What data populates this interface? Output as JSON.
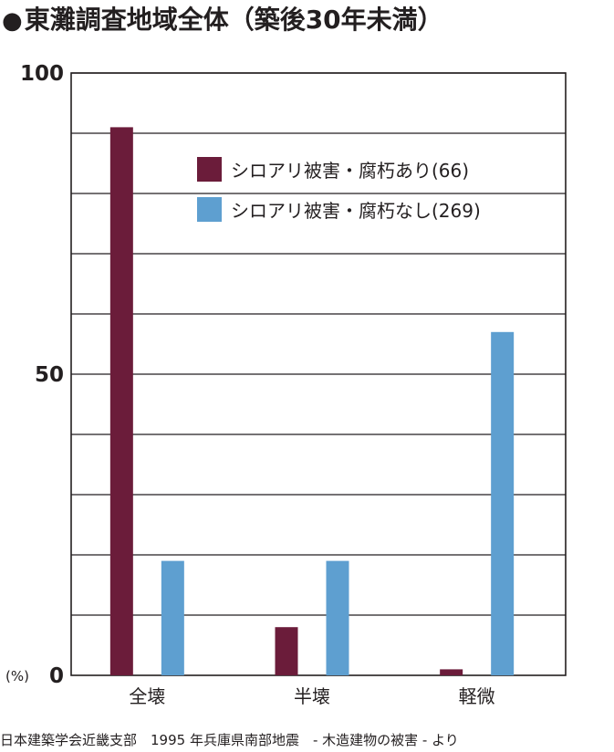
{
  "title": "東灘調査地域全体（築後30年未満）",
  "title_bullet": "●",
  "source": "日本建築学会近畿支部　1995 年兵庫県南部地震　- 木造建物の被害 - より",
  "chart_data": {
    "type": "bar",
    "title": "東灘調査地域全体（築後30年未満）",
    "categories": [
      "全壊",
      "半壊",
      "軽微"
    ],
    "series": [
      {
        "name": "シロアリ被害・腐朽あり(66)",
        "color": "#6b1c3a",
        "values": [
          91,
          8,
          1
        ]
      },
      {
        "name": "シロアリ被害・腐朽なし(269)",
        "color": "#5e9fd0",
        "values": [
          19,
          19,
          57
        ]
      }
    ],
    "ylim": [
      0,
      100
    ],
    "yticks": [
      0,
      50,
      100
    ],
    "ytick_labels": [
      "0",
      "50",
      "100"
    ],
    "yunit": "(%)",
    "grid": true,
    "gridlines": [
      10,
      20,
      30,
      40,
      50,
      60,
      70,
      80,
      90,
      100
    ],
    "legend": "top-right"
  }
}
